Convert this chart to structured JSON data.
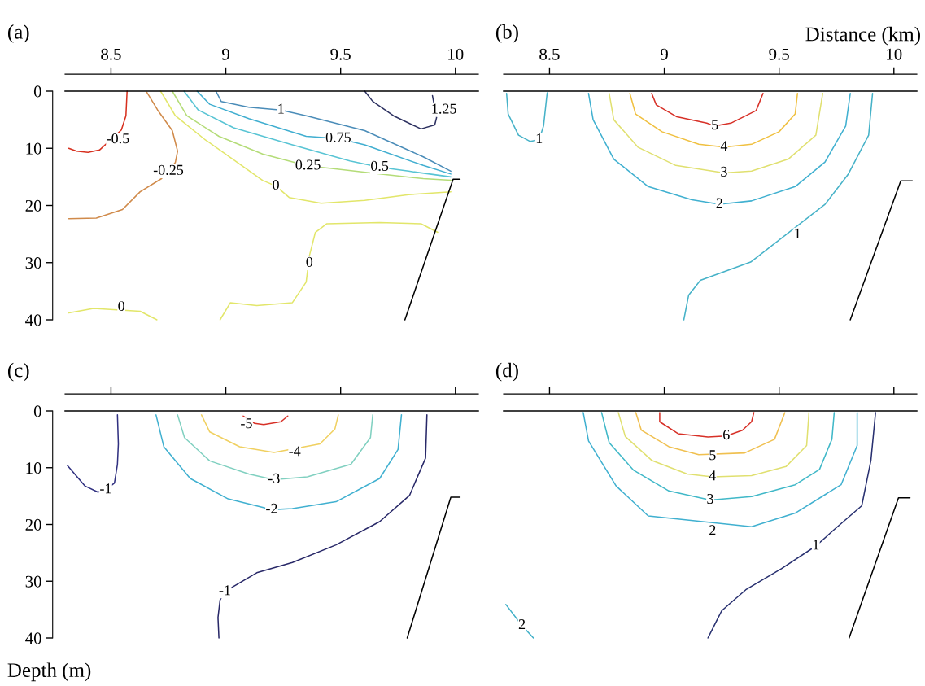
{
  "chart_data": [
    {
      "type": "line",
      "title": "(a)",
      "xlim": [
        8.3,
        10.1
      ],
      "xticks": [
        8.5,
        9,
        9.5,
        10
      ],
      "ylim": [
        40,
        0
      ],
      "yticks": [
        0,
        10,
        20,
        30,
        40
      ],
      "ref_lines": [
        {
          "axis": "y",
          "value": 0,
          "color": "#000000"
        }
      ],
      "series": [
        {
          "color": "#d7301f",
          "x": [
            8.57,
            8.565,
            8.545,
            8.45,
            8.4,
            8.35,
            8.316
          ],
          "values": [
            0,
            4.3,
            6.8,
            10.3,
            10.7,
            10.5,
            10.0
          ]
        },
        {
          "color": "#d08a4a",
          "x": [
            8.656,
            8.703,
            8.767,
            8.79,
            8.78,
            8.72,
            8.627,
            8.55,
            8.436,
            8.316
          ],
          "values": [
            0.2,
            3.3,
            6.9,
            10.5,
            12.5,
            15.3,
            17.6,
            20.7,
            22.2,
            22.3
          ]
        },
        {
          "color": "#e2e66a",
          "x": [
            8.716,
            8.78,
            8.907,
            9.034,
            9.16,
            9.218,
            9.276,
            9.415,
            9.605,
            9.796,
            9.98
          ],
          "values": [
            0,
            4.3,
            8.4,
            12,
            15.6,
            16.6,
            18.6,
            19.6,
            19.1,
            18.1,
            17.6
          ]
        },
        {
          "color": "#b4dc78",
          "x": [
            8.767,
            8.83,
            8.97,
            9.16,
            9.358,
            9.453,
            9.67,
            9.86,
            9.98
          ],
          "values": [
            0,
            4.3,
            7.9,
            11,
            13.1,
            13.5,
            14.5,
            15.3,
            15.6
          ]
        },
        {
          "color": "#58c4d4",
          "x": [
            8.818,
            8.88,
            9.034,
            9.29,
            9.54,
            9.67,
            9.796,
            9.98
          ],
          "values": [
            0,
            3.3,
            6.4,
            9.4,
            12.2,
            13.3,
            14,
            15
          ]
        },
        {
          "color": "#40aed0",
          "x": [
            8.875,
            8.93,
            9.1,
            9.35,
            9.49,
            9.605,
            9.86,
            9.98
          ],
          "values": [
            0,
            2.3,
            4.8,
            7.9,
            8.3,
            9.4,
            13,
            14.5
          ]
        },
        {
          "color": "#4a8cb8",
          "x": [
            8.957,
            8.98,
            9.1,
            9.24,
            9.35,
            9.605,
            9.86,
            9.98
          ],
          "values": [
            0,
            1.8,
            2.8,
            3.3,
            4.3,
            6.9,
            11.5,
            14
          ]
        },
        {
          "color": "#2c3060",
          "x": [
            9.605,
            9.64,
            9.73,
            9.85,
            9.91,
            9.918,
            9.9
          ],
          "values": [
            0,
            1.8,
            4.3,
            6.6,
            5.9,
            4.6,
            0.8
          ]
        },
        {
          "color": "#e2e66a",
          "x": [
            9.923,
            9.85,
            9.67,
            9.44,
            9.39,
            9.364,
            9.35,
            9.29,
            9.135,
            9.02,
            8.975
          ],
          "values": [
            24.7,
            23.2,
            23,
            23.2,
            24.7,
            28.8,
            33.4,
            37,
            37.5,
            37,
            40
          ]
        },
        {
          "color": "#e2e66a",
          "x": [
            8.316,
            8.424,
            8.627,
            8.7
          ],
          "values": [
            38.8,
            38,
            38.5,
            40
          ]
        },
        {
          "color": "#000000",
          "x": [
            9.78,
            9.99,
            10.02
          ],
          "values": [
            40,
            15.4,
            15.4
          ]
        }
      ],
      "annotations": [
        {
          "text": "-0.5",
          "x": 8.53,
          "y": 8.5
        },
        {
          "text": "-0.25",
          "x": 8.75,
          "y": 14
        },
        {
          "text": "0",
          "x": 9.218,
          "y": 16.6
        },
        {
          "text": "0.25",
          "x": 9.358,
          "y": 13.1
        },
        {
          "text": "0.5",
          "x": 9.67,
          "y": 13.3
        },
        {
          "text": "0.75",
          "x": 9.49,
          "y": 8.3
        },
        {
          "text": "1",
          "x": 9.24,
          "y": 3.3
        },
        {
          "text": "1.25",
          "x": 9.95,
          "y": 3.3
        },
        {
          "text": "0",
          "x": 9.364,
          "y": 30.1
        },
        {
          "text": "0",
          "x": 8.545,
          "y": 37.8
        }
      ]
    },
    {
      "type": "line",
      "title": "(b)",
      "xlabel": "Distance (km)",
      "xlim": [
        8.3,
        10.1
      ],
      "xticks": [
        8.5,
        9,
        9.5,
        10
      ],
      "ylim": [
        40,
        0
      ],
      "tick_labels": "x",
      "ref_lines": [
        {
          "axis": "y",
          "value": 0,
          "color": "#000000"
        }
      ],
      "series": [
        {
          "color": "#46b2c8",
          "x": [
            8.313,
            8.32,
            8.365,
            8.416,
            8.455,
            8.474,
            8.487,
            8.49
          ],
          "values": [
            0.4,
            4,
            7.7,
            8.8,
            8.5,
            6.1,
            1.3,
            0.3
          ]
        },
        {
          "color": "#40b0d0",
          "x": [
            8.67,
            8.69,
            8.78,
            8.93,
            9.12,
            9.24,
            9.38,
            9.57,
            9.7,
            9.79,
            9.81
          ],
          "values": [
            0.4,
            5,
            11.9,
            16.7,
            19,
            19.8,
            19.2,
            16.7,
            12.4,
            6.1,
            0.4
          ]
        },
        {
          "color": "#e0e070",
          "x": [
            8.76,
            8.78,
            8.885,
            9.05,
            9.26,
            9.38,
            9.54,
            9.66,
            9.69
          ],
          "values": [
            0.4,
            5,
            9.8,
            13,
            14.3,
            14,
            11.9,
            7.7,
            0.4
          ]
        },
        {
          "color": "#f0c040",
          "x": [
            8.85,
            8.875,
            8.99,
            9.15,
            9.26,
            9.38,
            9.5,
            9.57,
            9.58
          ],
          "values": [
            0.4,
            4,
            7.1,
            9.3,
            9.8,
            9.3,
            7.1,
            4,
            0.4
          ]
        },
        {
          "color": "#d73027",
          "x": [
            8.945,
            8.965,
            9.055,
            9.185,
            9.22,
            9.29,
            9.4,
            9.43
          ],
          "values": [
            0.4,
            2.4,
            4.5,
            5.6,
            6.1,
            5.6,
            3.4,
            0.4
          ]
        },
        {
          "color": "#46b2c8",
          "x": [
            9.907,
            9.89,
            9.8,
            9.7,
            9.376,
            9.157,
            9.106,
            9.085
          ],
          "values": [
            0.4,
            7.7,
            14.6,
            19.8,
            29.9,
            33.1,
            35.7,
            40
          ]
        },
        {
          "color": "#000000",
          "x": [
            9.81,
            10.03,
            10.08
          ],
          "values": [
            40,
            15.7,
            15.7
          ]
        }
      ],
      "annotations": [
        {
          "text": "1",
          "x": 8.455,
          "y": 8.5
        },
        {
          "text": "2",
          "x": 9.24,
          "y": 19.8
        },
        {
          "text": "3",
          "x": 9.26,
          "y": 14.3
        },
        {
          "text": "4",
          "x": 9.26,
          "y": 9.8
        },
        {
          "text": "5",
          "x": 9.22,
          "y": 6.1
        },
        {
          "text": "1",
          "x": 9.58,
          "y": 25.1
        }
      ]
    },
    {
      "type": "line",
      "title": "(c)",
      "ylabel": "Depth (m)",
      "xlim": [
        8.3,
        10.1
      ],
      "xticks": [
        {
          "value": 8.5,
          "label": null
        },
        {
          "value": 9,
          "label": null
        },
        {
          "value": 9.5,
          "label": null
        },
        {
          "value": 10,
          "label": null
        }
      ],
      "ylim": [
        40,
        0
      ],
      "yticks": [
        0,
        10,
        20,
        30,
        40
      ],
      "tick_labels": "y",
      "ref_lines": [
        {
          "axis": "y",
          "value": 0,
          "color": "#000000"
        }
      ],
      "series": [
        {
          "color": "#303080",
          "x": [
            8.528,
            8.532,
            8.528,
            8.515,
            8.477,
            8.443,
            8.386,
            8.31
          ],
          "values": [
            0.7,
            5.8,
            9.4,
            12.7,
            13.9,
            14.3,
            13.2,
            9.6
          ]
        },
        {
          "color": "#40b0d0",
          "x": [
            8.696,
            8.73,
            8.845,
            9.01,
            9.2,
            9.29,
            9.48,
            9.67,
            9.75,
            9.765
          ],
          "values": [
            0.7,
            6.3,
            11.9,
            15.5,
            17.4,
            17.2,
            16,
            11.9,
            6.8,
            0.7
          ]
        },
        {
          "color": "#80d0c0",
          "x": [
            8.79,
            8.82,
            8.93,
            9.1,
            9.21,
            9.355,
            9.545,
            9.63,
            9.64
          ],
          "values": [
            0.7,
            4.7,
            8.8,
            11.1,
            12.1,
            11.6,
            9.4,
            4.7,
            0.7
          ]
        },
        {
          "color": "#f0d060",
          "x": [
            8.894,
            8.93,
            9.06,
            9.21,
            9.41,
            9.475,
            9.49
          ],
          "values": [
            0.7,
            3.7,
            6.3,
            7.3,
            5.8,
            3.2,
            0.7
          ]
        },
        {
          "color": "#d73027",
          "x": [
            9.076,
            9.126,
            9.165,
            9.24,
            9.27
          ],
          "values": [
            0.9,
            2.2,
            2.4,
            1.9,
            0.9
          ]
        },
        {
          "color": "#282868",
          "x": [
            9.876,
            9.87,
            9.8,
            9.67,
            9.48,
            9.29,
            9.135,
            8.996,
            8.975,
            8.966,
            8.97
          ],
          "values": [
            0.7,
            8.3,
            14.9,
            19.5,
            23.6,
            26.7,
            28.5,
            31.8,
            33.3,
            36.4,
            40
          ]
        },
        {
          "color": "#000000",
          "x": [
            9.79,
            9.98,
            10.02
          ],
          "values": [
            40,
            15.2,
            15.2
          ]
        }
      ],
      "annotations": [
        {
          "text": "-1",
          "x": 8.477,
          "y": 13.9
        },
        {
          "text": "-2",
          "x": 9.2,
          "y": 17.4
        },
        {
          "text": "-3",
          "x": 9.21,
          "y": 12.1
        },
        {
          "text": "-4",
          "x": 9.3,
          "y": 7.3
        },
        {
          "text": "-5",
          "x": 9.09,
          "y": 2.4
        },
        {
          "text": "-1",
          "x": 8.996,
          "y": 31.8
        }
      ]
    },
    {
      "type": "line",
      "title": "(d)",
      "xlim": [
        8.3,
        10.1
      ],
      "xticks": [
        {
          "value": 8.5,
          "label": null
        },
        {
          "value": 9,
          "label": null
        },
        {
          "value": 9.5,
          "label": null
        },
        {
          "value": 10,
          "label": null
        }
      ],
      "ylim": [
        40,
        0
      ],
      "tick_labels": false,
      "ref_lines": [
        {
          "axis": "y",
          "value": 0,
          "color": "#000000"
        }
      ],
      "series": [
        {
          "color": "#40b0d0",
          "x": [
            8.647,
            8.67,
            8.79,
            8.93,
            9.38,
            9.57,
            9.77,
            9.84,
            9.84
          ],
          "values": [
            0.3,
            5.3,
            13.2,
            18.5,
            20.4,
            18,
            13,
            6.1,
            0.3
          ]
        },
        {
          "color": "#40b8c8",
          "x": [
            8.727,
            8.76,
            8.865,
            9.02,
            9.2,
            9.38,
            9.57,
            9.676,
            9.73,
            9.74
          ],
          "values": [
            0.3,
            5.6,
            10.4,
            14.1,
            15.7,
            15.1,
            13,
            10.3,
            5,
            0.3
          ]
        },
        {
          "color": "#e0e070",
          "x": [
            8.8,
            8.83,
            8.945,
            9.1,
            9.21,
            9.38,
            9.53,
            9.62,
            9.63
          ],
          "values": [
            0.3,
            4.5,
            8.7,
            11.1,
            11.6,
            11.4,
            9.8,
            6.1,
            0.3
          ]
        },
        {
          "color": "#f0c050",
          "x": [
            8.876,
            8.9,
            9.02,
            9.15,
            9.35,
            9.48,
            9.525
          ],
          "values": [
            0.3,
            3.4,
            6.3,
            7.7,
            7.4,
            5,
            0.3
          ]
        },
        {
          "color": "#d73027",
          "x": [
            8.98,
            8.98,
            9.06,
            9.19,
            9.27,
            9.34,
            9.38,
            9.39
          ],
          "values": [
            0.3,
            1.9,
            4,
            4.6,
            4.4,
            3.4,
            1.9,
            0.3
          ]
        },
        {
          "color": "#283070",
          "x": [
            9.92,
            9.9,
            9.86,
            9.74,
            9.66,
            9.51,
            9.355,
            9.25,
            9.21,
            9.19
          ],
          "values": [
            0.3,
            8.7,
            16.7,
            20.9,
            23.8,
            27.8,
            31.5,
            35.2,
            38.4,
            40
          ]
        },
        {
          "color": "#40b0c8",
          "x": [
            8.31,
            8.38,
            8.43
          ],
          "values": [
            34.1,
            37.8,
            40
          ]
        },
        {
          "color": "#000000",
          "x": [
            9.805,
            10.02,
            10.07
          ],
          "values": [
            40,
            15.3,
            15.3
          ]
        }
      ],
      "annotations": [
        {
          "text": "2",
          "x": 9.21,
          "y": 21.2
        },
        {
          "text": "3",
          "x": 9.2,
          "y": 15.7
        },
        {
          "text": "4",
          "x": 9.21,
          "y": 11.6
        },
        {
          "text": "5",
          "x": 9.21,
          "y": 8
        },
        {
          "text": "6",
          "x": 9.27,
          "y": 4.4
        },
        {
          "text": "1",
          "x": 9.66,
          "y": 23.8
        },
        {
          "text": "2",
          "x": 8.38,
          "y": 37.8
        }
      ]
    }
  ]
}
